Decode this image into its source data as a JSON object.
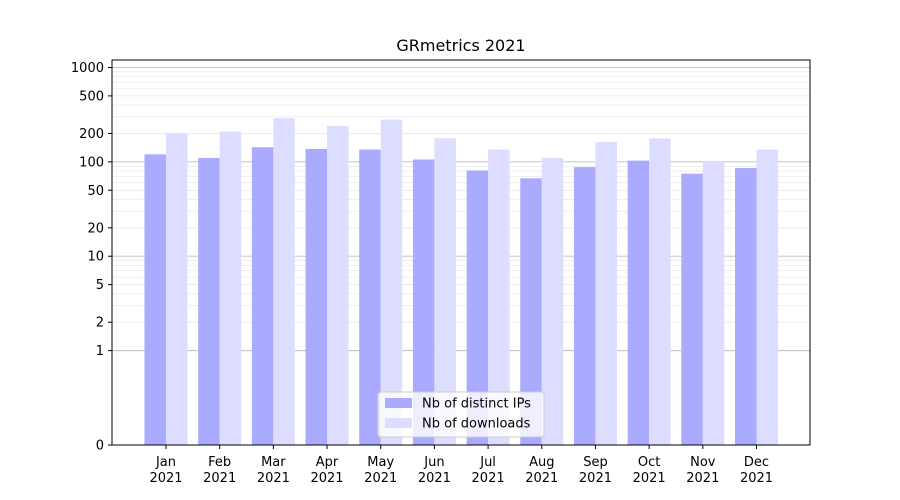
{
  "chart_data": {
    "type": "bar",
    "title": "GRmetrics 2021",
    "xlabel": "",
    "ylabel": "",
    "yscale": "symlog",
    "ylim": [
      0,
      1200
    ],
    "yticks": [
      0,
      1,
      2,
      5,
      10,
      20,
      50,
      100,
      200,
      500,
      1000
    ],
    "grid": true,
    "legend_position": "lower-center",
    "categories": [
      [
        "Jan",
        "2021"
      ],
      [
        "Feb",
        "2021"
      ],
      [
        "Mar",
        "2021"
      ],
      [
        "Apr",
        "2021"
      ],
      [
        "May",
        "2021"
      ],
      [
        "Jun",
        "2021"
      ],
      [
        "Jul",
        "2021"
      ],
      [
        "Aug",
        "2021"
      ],
      [
        "Sep",
        "2021"
      ],
      [
        "Oct",
        "2021"
      ],
      [
        "Nov",
        "2021"
      ],
      [
        "Dec",
        "2021"
      ]
    ],
    "series": [
      {
        "name": "Nb of distinct IPs",
        "color": "#aaaaff",
        "values": [
          120,
          110,
          143,
          137,
          135,
          106,
          81,
          67,
          88,
          103,
          75,
          86
        ]
      },
      {
        "name": "Nb of downloads",
        "color": "#ddddff",
        "values": [
          200,
          210,
          290,
          240,
          280,
          178,
          135,
          110,
          162,
          177,
          100,
          135
        ]
      }
    ]
  }
}
